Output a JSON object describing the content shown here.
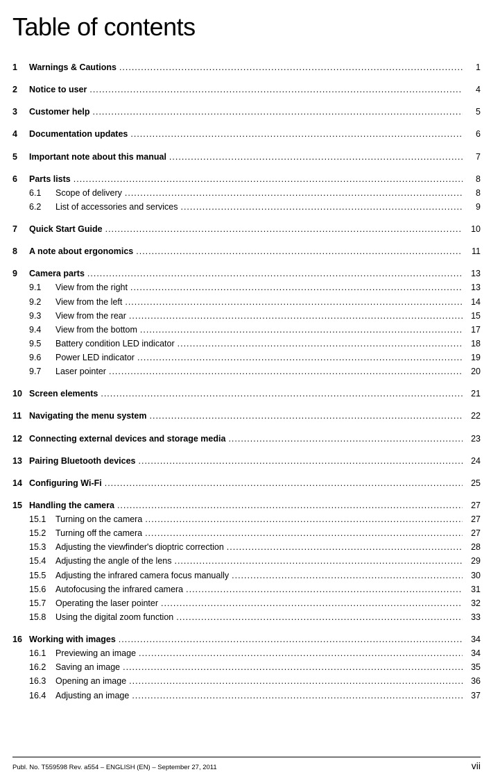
{
  "title": "Table of contents",
  "leader_char": ".",
  "entries": [
    {
      "type": "chapter",
      "num": "1",
      "label": "Warnings & Cautions",
      "page": "1"
    },
    {
      "type": "chapter",
      "num": "2",
      "label": "Notice to user",
      "page": "4"
    },
    {
      "type": "chapter",
      "num": "3",
      "label": "Customer  help",
      "page": "5"
    },
    {
      "type": "chapter",
      "num": "4",
      "label": "Documentation updates",
      "page": "6"
    },
    {
      "type": "chapter",
      "num": "5",
      "label": "Important note about this manual",
      "page": "7"
    },
    {
      "type": "chapter",
      "num": "6",
      "label": "Parts lists",
      "page": "8"
    },
    {
      "type": "sub",
      "num": "6.1",
      "label": "Scope of delivery",
      "page": "8"
    },
    {
      "type": "sub",
      "num": "6.2",
      "label": "List of accessories and services",
      "page": "9"
    },
    {
      "type": "chapter",
      "num": "7",
      "label": "Quick Start Guide",
      "page": "10"
    },
    {
      "type": "chapter",
      "num": "8",
      "label": "A note about ergonomics",
      "page": "11"
    },
    {
      "type": "chapter",
      "num": "9",
      "label": "Camera parts",
      "page": "13"
    },
    {
      "type": "sub",
      "num": "9.1",
      "label": "View from the right",
      "page": "13"
    },
    {
      "type": "sub",
      "num": "9.2",
      "label": "View from the left",
      "page": "14"
    },
    {
      "type": "sub",
      "num": "9.3",
      "label": "View from the rear",
      "page": "15"
    },
    {
      "type": "sub",
      "num": "9.4",
      "label": "View from the bottom",
      "page": "17"
    },
    {
      "type": "sub",
      "num": "9.5",
      "label": "Battery condition LED indicator",
      "page": "18"
    },
    {
      "type": "sub",
      "num": "9.6",
      "label": "Power LED indicator",
      "page": "19"
    },
    {
      "type": "sub",
      "num": "9.7",
      "label": "Laser pointer",
      "page": "20"
    },
    {
      "type": "chapter",
      "num": "10",
      "label": "Screen elements",
      "page": "21"
    },
    {
      "type": "chapter",
      "num": "11",
      "label": "Navigating the menu system",
      "page": "22"
    },
    {
      "type": "chapter",
      "num": "12",
      "label": "Connecting external devices and storage media",
      "page": "23"
    },
    {
      "type": "chapter",
      "num": "13",
      "label": "Pairing Bluetooth devices",
      "page": "24"
    },
    {
      "type": "chapter",
      "num": "14",
      "label": "Configuring Wi-Fi",
      "page": "25"
    },
    {
      "type": "chapter",
      "num": "15",
      "label": "Handling the camera",
      "page": "27"
    },
    {
      "type": "sub",
      "num": "15.1",
      "label": "Turning on the camera",
      "page": "27"
    },
    {
      "type": "sub",
      "num": "15.2",
      "label": "Turning off the camera",
      "page": "27"
    },
    {
      "type": "sub",
      "num": "15.3",
      "label": "Adjusting the viewfinder's dioptric correction",
      "page": "28"
    },
    {
      "type": "sub",
      "num": "15.4",
      "label": "Adjusting the angle of the lens",
      "page": "29"
    },
    {
      "type": "sub",
      "num": "15.5",
      "label": "Adjusting the infrared camera focus manually",
      "page": "30"
    },
    {
      "type": "sub",
      "num": "15.6",
      "label": "Autofocusing the infrared camera",
      "page": "31"
    },
    {
      "type": "sub",
      "num": "15.7",
      "label": "Operating the laser pointer",
      "page": "32"
    },
    {
      "type": "sub",
      "num": "15.8",
      "label": "Using the digital zoom function",
      "page": "33"
    },
    {
      "type": "chapter",
      "num": "16",
      "label": "Working with images",
      "page": "34"
    },
    {
      "type": "sub",
      "num": "16.1",
      "label": "Previewing an image",
      "page": "34"
    },
    {
      "type": "sub",
      "num": "16.2",
      "label": "Saving an image",
      "page": "35"
    },
    {
      "type": "sub",
      "num": "16.3",
      "label": "Opening an image",
      "page": "36"
    },
    {
      "type": "sub",
      "num": "16.4",
      "label": "Adjusting an image",
      "page": "37"
    }
  ],
  "footer": {
    "left": "Publ. No. T559598 Rev. a554 – ENGLISH (EN) – September 27, 2011",
    "right": "vii"
  }
}
